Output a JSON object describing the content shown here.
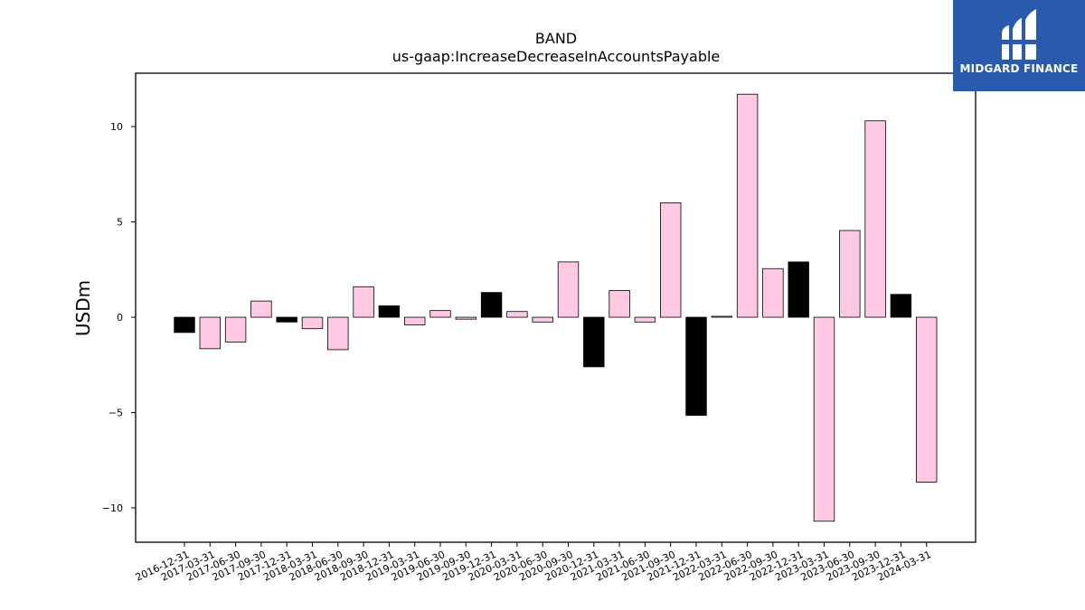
{
  "chart_data": {
    "type": "bar",
    "title": "BAND",
    "subtitle": "us-gaap:IncreaseDecreaseInAccountsPayable",
    "xlabel": "",
    "ylabel": "USDm",
    "ylim": [
      -11.8,
      12.8
    ],
    "yticks": [
      -10,
      -5,
      0,
      5,
      10
    ],
    "ytick_labels": [
      "−10",
      "−5",
      "0",
      "5",
      "10"
    ],
    "grid": false,
    "categories": [
      "2016-12-31",
      "2017-03-31",
      "2017-06-30",
      "2017-09-30",
      "2017-12-31",
      "2018-03-31",
      "2018-06-30",
      "2018-09-30",
      "2018-12-31",
      "2019-03-31",
      "2019-06-30",
      "2019-09-30",
      "2019-12-31",
      "2020-03-31",
      "2020-06-30",
      "2020-09-30",
      "2020-12-31",
      "2021-03-31",
      "2021-06-30",
      "2021-09-30",
      "2021-12-31",
      "2022-03-31",
      "2022-06-30",
      "2022-09-30",
      "2022-12-31",
      "2023-03-31",
      "2023-06-30",
      "2023-09-30",
      "2023-12-31",
      "2024-03-31"
    ],
    "values": [
      -0.8,
      -1.65,
      -1.3,
      0.85,
      -0.25,
      -0.6,
      -1.7,
      1.6,
      0.6,
      -0.4,
      0.35,
      -0.1,
      1.3,
      0.3,
      -0.25,
      2.9,
      -2.6,
      1.4,
      -0.25,
      6.0,
      -5.15,
      0.05,
      11.7,
      2.55,
      2.9,
      -10.7,
      4.55,
      10.3,
      1.2,
      -8.65
    ],
    "colors": [
      "#000000",
      "#ffc9e3",
      "#ffc9e3",
      "#ffc9e3",
      "#000000",
      "#ffc9e3",
      "#ffc9e3",
      "#ffc9e3",
      "#000000",
      "#ffc9e3",
      "#ffc9e3",
      "#ffc9e3",
      "#000000",
      "#ffc9e3",
      "#ffc9e3",
      "#ffc9e3",
      "#000000",
      "#ffc9e3",
      "#ffc9e3",
      "#ffc9e3",
      "#000000",
      "#ffc9e3",
      "#ffc9e3",
      "#ffc9e3",
      "#000000",
      "#ffc9e3",
      "#ffc9e3",
      "#ffc9e3",
      "#000000",
      "#ffc9e3"
    ]
  },
  "logo": {
    "text": "MIDGARD FINANCE",
    "background": "#2a5aab",
    "icon": "midgard-logo-icon"
  }
}
